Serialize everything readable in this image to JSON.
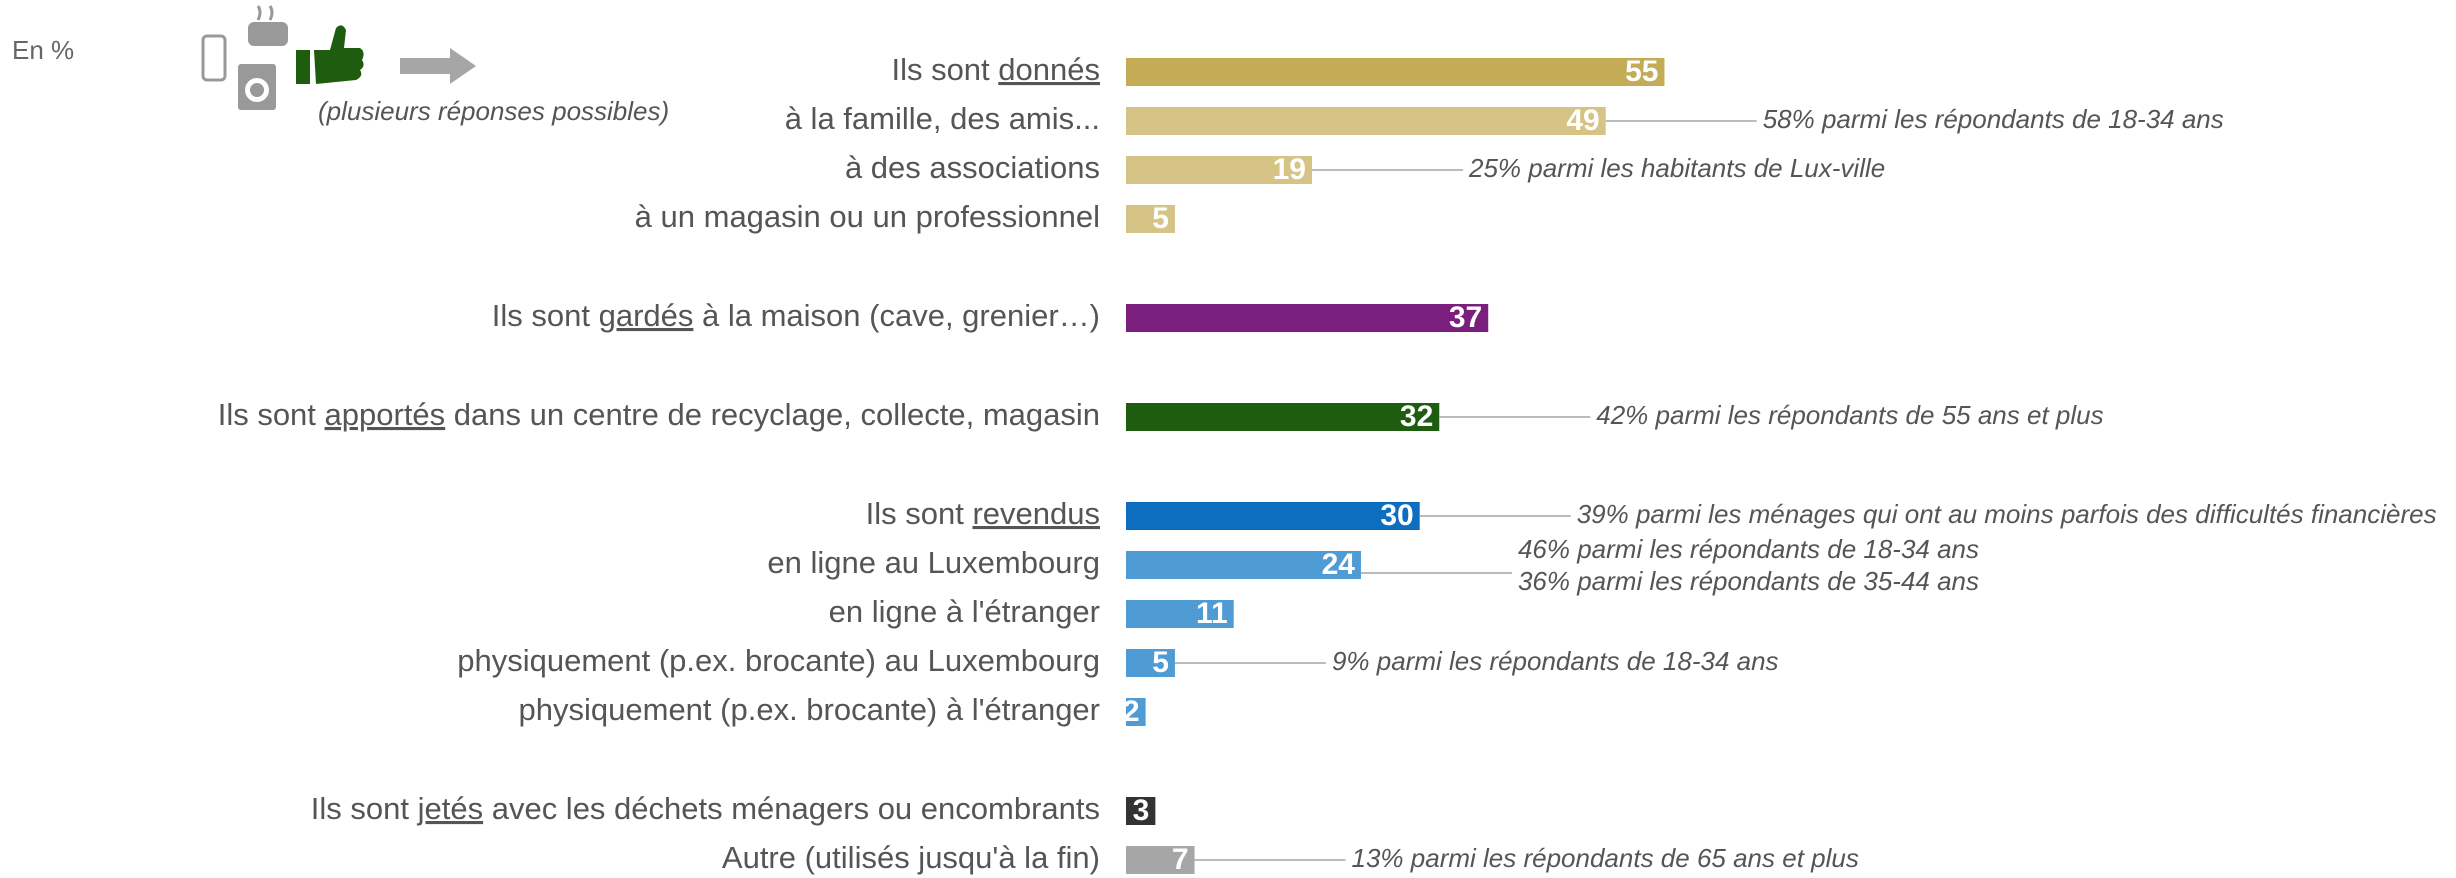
{
  "chart_data": {
    "type": "bar",
    "orientation": "horizontal",
    "unit_label": "En %",
    "note": "(plusieurs réponses possibles)",
    "categories": [
      "Ils sont donnés",
      "à la famille, des amis...",
      "à des associations",
      "à un magasin ou un professionnel",
      "Ils sont gardés à la maison (cave, grenier…)",
      "Ils sont apportés dans un centre de recyclage, collecte, magasin",
      "Ils sont revendus",
      "en ligne au Luxembourg",
      "en ligne à l'étranger",
      "physiquement (p.ex. brocante) au Luxembourg",
      "physiquement (p.ex. brocante) à l'étranger",
      "Ils sont jetés avec les déchets ménagers ou encombrants",
      "Autre (utilisés jusqu'à la fin)"
    ],
    "underline": [
      "donnés",
      null,
      null,
      null,
      "gardés",
      "apportés",
      "revendus",
      null,
      null,
      null,
      null,
      "jetés",
      null
    ],
    "values": [
      55,
      49,
      19,
      5,
      37,
      32,
      30,
      24,
      11,
      5,
      2,
      3,
      7
    ],
    "colors": [
      "#c4ab55",
      "#d6c487",
      "#d6c487",
      "#d6c487",
      "#7b1f7e",
      "#1e5c0f",
      "#0d6ebf",
      "#4f9bd4",
      "#4f9bd4",
      "#4f9bd4",
      "#4f9bd4",
      "#333333",
      "#a6a6a6"
    ],
    "annotations": [
      null,
      [
        "58% parmi les répondants de 18-34 ans"
      ],
      [
        "25% parmi les habitants de Lux-ville"
      ],
      null,
      null,
      [
        "42% parmi les répondants de 55 ans et plus"
      ],
      [
        "39% parmi les ménages qui ont au moins parfois des difficultés financières"
      ],
      [
        "46% parmi les répondants de 18-34 ans",
        "36% parmi les répondants de 35-44 ans"
      ],
      null,
      [
        "9% parmi les répondants de 18-34 ans"
      ],
      null,
      null,
      [
        "13% parmi les répondants de 65 ans et plus"
      ]
    ]
  }
}
